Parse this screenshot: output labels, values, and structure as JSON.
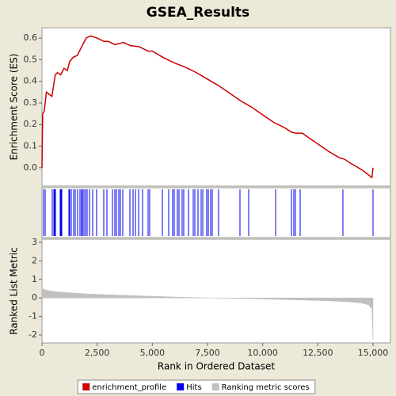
{
  "chart_data": [
    {
      "type": "line",
      "title": "GSEA_Results",
      "name": "enrichment_profile",
      "color": "#cc0000",
      "y_label": "Enrichment Score (ES)",
      "x": [
        0,
        30,
        100,
        200,
        450,
        600,
        700,
        850,
        1000,
        1150,
        1250,
        1400,
        1600,
        1800,
        2000,
        2200,
        2500,
        2800,
        3000,
        3300,
        3500,
        3700,
        4000,
        4400,
        4800,
        5000,
        5500,
        6000,
        6500,
        7000,
        7500,
        8000,
        8500,
        9000,
        9500,
        10000,
        10500,
        11000,
        11300,
        11500,
        11800,
        12000,
        12500,
        13000,
        13500,
        13700,
        14000,
        14500,
        14950,
        15000
      ],
      "values": [
        0,
        0.25,
        0.26,
        0.35,
        0.33,
        0.43,
        0.44,
        0.43,
        0.46,
        0.45,
        0.49,
        0.51,
        0.52,
        0.56,
        0.6,
        0.61,
        0.6,
        0.585,
        0.585,
        0.57,
        0.575,
        0.58,
        0.565,
        0.56,
        0.54,
        0.54,
        0.51,
        0.485,
        0.465,
        0.44,
        0.41,
        0.38,
        0.345,
        0.31,
        0.28,
        0.245,
        0.21,
        0.185,
        0.165,
        0.16,
        0.16,
        0.145,
        0.11,
        0.075,
        0.045,
        0.04,
        0.02,
        -0.01,
        -0.045,
        0
      ],
      "xlim": [
        0,
        15790
      ],
      "ylim": [
        -0.085,
        0.648
      ],
      "yticks": [
        {
          "value": 0,
          "label": "0.0"
        },
        0.1,
        0.2,
        0.3,
        0.4,
        0.5,
        0.6
      ]
    },
    {
      "type": "rug",
      "name": "Hits",
      "color": "#0000ee",
      "x": [
        72,
        144,
        467,
        538,
        574,
        610,
        825,
        861,
        897,
        1220,
        1256,
        1327,
        1435,
        1507,
        1615,
        1722,
        1794,
        1830,
        1902,
        1974,
        2045,
        2153,
        2297,
        2476,
        2799,
        2943,
        3194,
        3301,
        3373,
        3481,
        3553,
        3660,
        3983,
        4127,
        4234,
        4378,
        4558,
        4809,
        4880,
        5455,
        5742,
        5921,
        5993,
        6136,
        6208,
        6352,
        6423,
        6639,
        6854,
        6926,
        7069,
        7213,
        7285,
        7464,
        7536,
        7644,
        7715,
        8002,
        8971,
        9366,
        10586,
        11304,
        11411,
        11483,
        11699,
        13636,
        15000
      ],
      "xlim": [
        0,
        15790
      ]
    },
    {
      "type": "area",
      "name": "Ranking metric scores",
      "color": "#c0c0c0",
      "y_label": "Ranked List Metric",
      "x_label": "Rank in Ordered Dataset",
      "x": [
        0,
        100,
        500,
        1000,
        2000,
        3000,
        4000,
        5000,
        6000,
        7000,
        7500,
        8000,
        9000,
        10000,
        11000,
        12000,
        13000,
        14000,
        14500,
        14800,
        14950,
        15000
      ],
      "values": [
        0.55,
        0.45,
        0.35,
        0.3,
        0.22,
        0.17,
        0.13,
        0.09,
        0.05,
        0.02,
        0,
        -0.01,
        -0.03,
        -0.06,
        -0.09,
        -0.12,
        -0.16,
        -0.22,
        -0.28,
        -0.38,
        -0.6,
        -2.25
      ],
      "xlim": [
        0,
        15790
      ],
      "ylim": [
        -2.43,
        3.17
      ],
      "yticks": [
        3,
        2,
        1,
        0,
        -1,
        -2
      ],
      "xticks": [
        0,
        {
          "value": 2500,
          "label": "2,500"
        },
        {
          "value": 5000,
          "label": "5,000"
        },
        {
          "value": 7500,
          "label": "7,500"
        },
        {
          "value": 10000,
          "label": "10,000"
        },
        {
          "value": 12500,
          "label": "12,500"
        },
        {
          "value": 15000,
          "label": "15,000"
        }
      ]
    }
  ]
}
